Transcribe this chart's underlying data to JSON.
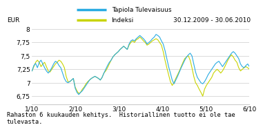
{
  "title_right": "30.12.2009 - 30.06.2010",
  "legend_line1": "Tapiola Tulevaisuus",
  "legend_line2": "Indeksi",
  "ylabel": "EUR",
  "xtick_labels": [
    "1/10",
    "2/10",
    "3/10",
    "4/10",
    "5/10",
    "6/10"
  ],
  "ytick_labels": [
    "6,75",
    "7",
    "7,25",
    "7,5",
    "7,75",
    "8"
  ],
  "ytick_values": [
    6.75,
    7.0,
    7.25,
    7.5,
    7.75,
    8.0
  ],
  "ylim": [
    6.6,
    8.08
  ],
  "color_blue": "#29ABE2",
  "color_yellow": "#C8D400",
  "background_color": "#ffffff",
  "grid_color": "#cccccc",
  "footer_text": "Rahaston 6 kuukauden kehitys.  Historiallinen tuotto ei ole tae\ntulevasta.",
  "blue_data": [
    7.22,
    7.32,
    7.36,
    7.28,
    7.38,
    7.42,
    7.35,
    7.28,
    7.22,
    7.18,
    7.22,
    7.28,
    7.35,
    7.4,
    7.38,
    7.32,
    7.28,
    7.18,
    7.08,
    7.02,
    7.0,
    7.02,
    7.05,
    7.08,
    6.9,
    6.82,
    6.78,
    6.82,
    6.85,
    6.9,
    6.95,
    7.0,
    7.05,
    7.08,
    7.1,
    7.12,
    7.1,
    7.08,
    7.05,
    7.1,
    7.18,
    7.25,
    7.32,
    7.38,
    7.42,
    7.48,
    7.52,
    7.55,
    7.58,
    7.62,
    7.65,
    7.68,
    7.65,
    7.62,
    7.72,
    7.78,
    7.8,
    7.78,
    7.82,
    7.85,
    7.88,
    7.85,
    7.82,
    7.78,
    7.72,
    7.75,
    7.78,
    7.82,
    7.85,
    7.9,
    7.88,
    7.85,
    7.78,
    7.72,
    7.6,
    7.45,
    7.3,
    7.18,
    7.05,
    6.98,
    7.05,
    7.12,
    7.2,
    7.28,
    7.35,
    7.42,
    7.48,
    7.52,
    7.55,
    7.5,
    7.35,
    7.2,
    7.1,
    7.05,
    7.0,
    6.98,
    7.02,
    7.08,
    7.15,
    7.2,
    7.25,
    7.3,
    7.35,
    7.38,
    7.4,
    7.35,
    7.3,
    7.35,
    7.4,
    7.45,
    7.5,
    7.55,
    7.58,
    7.55,
    7.5,
    7.45,
    7.35,
    7.3,
    7.28,
    7.32,
    7.35,
    7.3,
    7.28
  ],
  "yellow_data": [
    7.22,
    7.3,
    7.38,
    7.42,
    7.38,
    7.3,
    7.35,
    7.38,
    7.3,
    7.22,
    7.2,
    7.25,
    7.3,
    7.35,
    7.38,
    7.42,
    7.4,
    7.35,
    7.28,
    7.12,
    7.02,
    7.02,
    7.05,
    7.08,
    6.92,
    6.85,
    6.8,
    6.82,
    6.88,
    6.92,
    6.98,
    7.02,
    7.05,
    7.08,
    7.1,
    7.12,
    7.1,
    7.08,
    7.05,
    7.1,
    7.18,
    7.22,
    7.28,
    7.35,
    7.42,
    7.48,
    7.52,
    7.55,
    7.58,
    7.62,
    7.65,
    7.68,
    7.65,
    7.62,
    7.7,
    7.75,
    7.78,
    7.75,
    7.8,
    7.82,
    7.85,
    7.82,
    7.78,
    7.75,
    7.7,
    7.72,
    7.75,
    7.78,
    7.8,
    7.82,
    7.8,
    7.75,
    7.7,
    7.58,
    7.42,
    7.28,
    7.15,
    7.02,
    6.95,
    7.0,
    7.08,
    7.15,
    7.22,
    7.3,
    7.38,
    7.45,
    7.48,
    7.5,
    7.42,
    7.28,
    7.12,
    7.0,
    6.95,
    6.88,
    6.82,
    6.75,
    6.88,
    6.95,
    7.0,
    7.05,
    7.1,
    7.18,
    7.22,
    7.25,
    7.22,
    7.18,
    7.22,
    7.28,
    7.35,
    7.42,
    7.48,
    7.52,
    7.48,
    7.42,
    7.38,
    7.28,
    7.22,
    7.25,
    7.28,
    7.3,
    7.28,
    7.25
  ]
}
